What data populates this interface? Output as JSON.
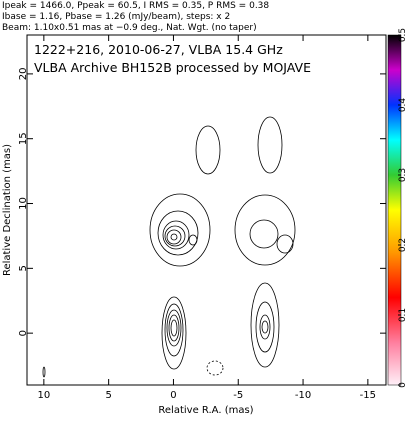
{
  "header": {
    "lines": [
      "Ipeak = 1466.0, Ppeak = 60.5, I RMS = 0.35, P RMS = 0.38",
      "Ibase = 1.16, Pbase = 1.26 (mJy/beam), steps: x 2",
      "Beam: 1.10x0.51 mas at −0.9 deg., Nat. Wgt. (no taper)"
    ]
  },
  "chart_data": {
    "type": "contour",
    "title": "1222+216, 2010-06-27, VLBA 15.4 GHz",
    "subtitle": "VLBA Archive BH152B processed by MOJAVE",
    "x_label": "Relative R.A. (mas)",
    "y_label": "Relative Declination (mas)",
    "xlim": [
      11.3,
      -16.4
    ],
    "xticks": [
      10,
      5,
      0,
      -5,
      -10,
      -15
    ],
    "ylim": [
      -4,
      23
    ],
    "yticks": [
      0,
      5,
      10,
      15,
      20
    ],
    "colorbar": {
      "lim": [
        0,
        0.5
      ],
      "ticks": [
        0,
        0.1,
        0.2,
        0.3,
        0.4,
        0.5
      ]
    }
  }
}
